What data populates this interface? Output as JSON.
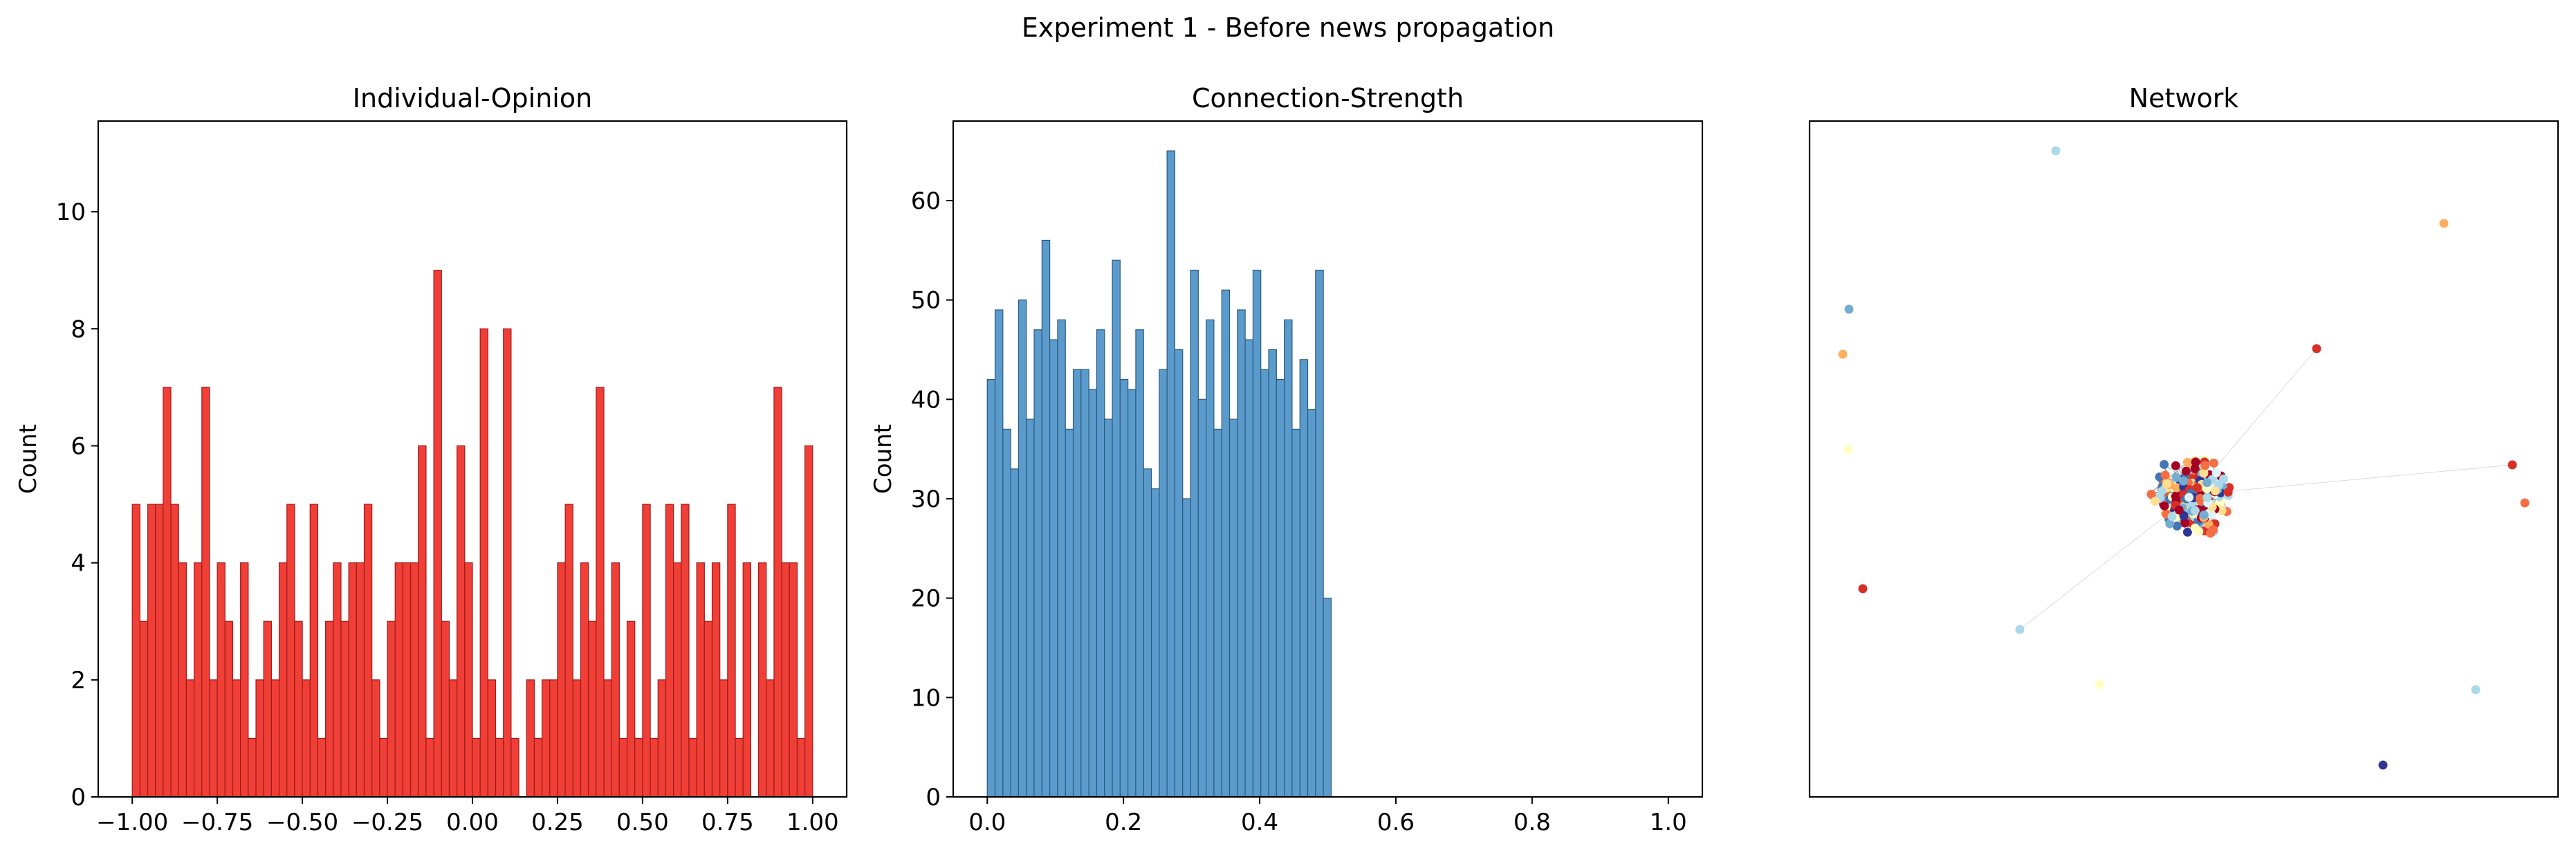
{
  "suptitle": "Experiment 1 - Before news propagation",
  "colors": {
    "opinion_bar": "#ef3f36",
    "opinion_edge": "#a11a1a",
    "strength_bar": "#5b9bcb",
    "strength_edge": "#2b5a82",
    "node_palette": [
      "#a50026",
      "#d73027",
      "#f46d43",
      "#fdae61",
      "#fee090",
      "#ffffbf",
      "#e0f3f8",
      "#abd9e9",
      "#74add1",
      "#4575b4",
      "#313695"
    ],
    "edge": "#555555"
  },
  "chart_data": [
    {
      "type": "bar",
      "title": "Individual-Opinion",
      "xlabel": "",
      "ylabel": "Count",
      "xlim": [
        -1.1,
        1.1
      ],
      "ylim": [
        0,
        11.55
      ],
      "xticks": [
        -1.0,
        -0.75,
        -0.5,
        -0.25,
        0.0,
        0.25,
        0.5,
        0.75,
        1.0
      ],
      "xtick_labels": [
        "−1.00",
        "−0.75",
        "−0.50",
        "−0.25",
        "0.00",
        "0.25",
        "0.50",
        "0.75",
        "1.00"
      ],
      "yticks": [
        0,
        2,
        4,
        6,
        8,
        10
      ],
      "ytick_labels": [
        "0",
        "2",
        "4",
        "6",
        "8",
        "10"
      ],
      "bin_range": [
        -1.0,
        1.0
      ],
      "values": [
        5,
        3,
        5,
        5,
        7,
        5,
        4,
        2,
        4,
        7,
        2,
        4,
        3,
        2,
        4,
        1,
        2,
        3,
        2,
        4,
        5,
        3,
        2,
        5,
        1,
        3,
        4,
        3,
        4,
        4,
        5,
        2,
        1,
        3,
        4,
        4,
        4,
        6,
        1,
        9,
        3,
        2,
        6,
        4,
        1,
        8,
        2,
        1,
        8,
        1,
        0,
        2,
        1,
        2,
        2,
        4,
        5,
        2,
        4,
        3,
        7,
        2,
        4,
        1,
        3,
        1,
        5,
        1,
        2,
        5,
        4,
        5,
        1,
        4,
        3,
        4,
        2,
        5,
        1,
        4,
        0,
        4,
        2,
        7,
        4,
        4,
        1,
        6
      ],
      "grid": false
    },
    {
      "type": "bar",
      "title": "Connection-Strength",
      "xlabel": "",
      "ylabel": "Count",
      "xlim": [
        -0.05,
        1.05
      ],
      "ylim": [
        0,
        68
      ],
      "xticks": [
        0.0,
        0.2,
        0.4,
        0.6,
        0.8,
        1.0
      ],
      "xtick_labels": [
        "0.0",
        "0.2",
        "0.4",
        "0.6",
        "0.8",
        "1.0"
      ],
      "yticks": [
        0,
        10,
        20,
        30,
        40,
        50,
        60
      ],
      "ytick_labels": [
        "0",
        "10",
        "20",
        "30",
        "40",
        "50",
        "60"
      ],
      "bin_range": [
        0.0,
        0.505
      ],
      "values": [
        42,
        49,
        37,
        33,
        50,
        38,
        47,
        56,
        46,
        48,
        37,
        43,
        43,
        41,
        47,
        38,
        54,
        42,
        41,
        47,
        33,
        31,
        43,
        65,
        45,
        30,
        53,
        40,
        48,
        37,
        51,
        38,
        49,
        46,
        53,
        43,
        45,
        42,
        48,
        37,
        44,
        39,
        53,
        20
      ],
      "grid": false
    },
    {
      "type": "scatter",
      "title": "Network",
      "xlabel": "",
      "ylabel": "",
      "axes": "off",
      "description_nodes": "network graph nodes colored by opinion",
      "grid": false
    }
  ]
}
